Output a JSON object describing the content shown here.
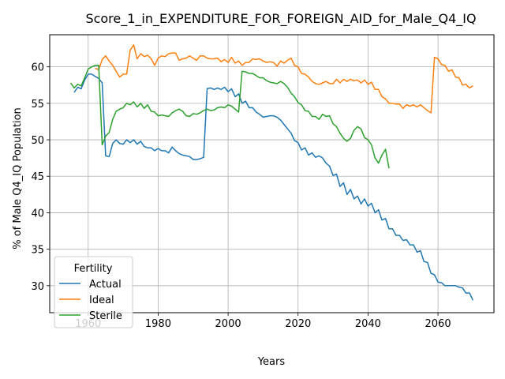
{
  "chart_data": {
    "type": "line",
    "title": "Score_1_in_EXPENDITURE_FOR_FOREIGN_AID_for_Male_Q4_IQ",
    "xlabel": "Years",
    "ylabel": "% of Male Q4_IQ Population",
    "xlim": [
      1949,
      2076
    ],
    "ylim": [
      26.3,
      64.4
    ],
    "xticks": [
      1960,
      1980,
      2000,
      2020,
      2040,
      2060
    ],
    "yticks": [
      30,
      35,
      40,
      45,
      50,
      55,
      60
    ],
    "grid": true,
    "legend": {
      "title": "Fertility",
      "placement": "lower-left"
    },
    "series": [
      {
        "name": "Actual",
        "color": "#1f77b4",
        "x": [
          1956,
          1957,
          1958,
          1959,
          1960,
          1961,
          1962,
          1963,
          1964,
          1965,
          1966,
          1967,
          1968,
          1969,
          1970,
          1971,
          1972,
          1973,
          1974,
          1975,
          1976,
          1977,
          1978,
          1979,
          1980,
          1981,
          1982,
          1983,
          1984,
          1985,
          1986,
          1987,
          1988,
          1989,
          1990,
          1991,
          1992,
          1993,
          1994,
          1995,
          1996,
          1997,
          1998,
          1999,
          2000,
          2001,
          2002,
          2003,
          2004,
          2005,
          2006,
          2007,
          2008,
          2009,
          2010,
          2011,
          2012,
          2013,
          2014,
          2015,
          2016,
          2017,
          2018,
          2019,
          2020,
          2021,
          2022,
          2023,
          2024,
          2025,
          2026,
          2027,
          2028,
          2029,
          2030,
          2031,
          2032,
          2033,
          2034,
          2035,
          2036,
          2037,
          2038,
          2039,
          2040,
          2041,
          2042,
          2043,
          2044,
          2045,
          2046,
          2047,
          2048,
          2049,
          2050,
          2051,
          2052,
          2053,
          2054,
          2055,
          2056,
          2057,
          2058,
          2059,
          2060,
          2061,
          2062,
          2063,
          2064,
          2065,
          2066,
          2067,
          2068,
          2069,
          2070
        ],
        "y": [
          56.5,
          57.2,
          57.0,
          58.2,
          59.0,
          59.0,
          58.7,
          58.4,
          57.8,
          47.8,
          47.7,
          49.5,
          50.0,
          49.5,
          49.4,
          50.0,
          49.6,
          50.0,
          49.4,
          49.8,
          49.1,
          48.9,
          48.9,
          48.5,
          48.8,
          48.5,
          48.5,
          48.2,
          49.0,
          48.5,
          48.1,
          47.9,
          47.8,
          47.7,
          47.3,
          47.3,
          47.4,
          47.6,
          57.0,
          57.1,
          56.9,
          57.1,
          56.9,
          57.2,
          56.6,
          57.0,
          55.9,
          56.3,
          55.0,
          55.3,
          54.4,
          54.4,
          53.8,
          53.5,
          53.1,
          53.2,
          53.3,
          53.3,
          53.1,
          52.7,
          52.1,
          51.5,
          50.9,
          49.9,
          49.6,
          48.6,
          48.9,
          47.9,
          48.2,
          47.6,
          47.8,
          47.5,
          46.8,
          46.4,
          45.1,
          45.3,
          43.6,
          44.1,
          42.5,
          43.2,
          41.9,
          42.3,
          41.2,
          41.9,
          40.9,
          41.3,
          40.0,
          40.4,
          39.0,
          39.2,
          37.8,
          37.8,
          36.9,
          36.9,
          36.2,
          36.3,
          35.6,
          35.6,
          34.6,
          34.8,
          33.3,
          33.2,
          31.7,
          31.5,
          30.5,
          30.4,
          30.0,
          30.0,
          30.0,
          30.0,
          29.8,
          29.7,
          29.0,
          29.0,
          28.0
        ]
      },
      {
        "name": "Ideal",
        "color": "#ff7f0e",
        "x": [
          1962,
          1963,
          1964,
          1965,
          1966,
          1967,
          1968,
          1969,
          1970,
          1971,
          1972,
          1973,
          1974,
          1975,
          1976,
          1977,
          1978,
          1979,
          1980,
          1981,
          1982,
          1983,
          1984,
          1985,
          1986,
          1987,
          1988,
          1989,
          1990,
          1991,
          1992,
          1993,
          1994,
          1995,
          1996,
          1997,
          1998,
          1999,
          2000,
          2001,
          2002,
          2003,
          2004,
          2005,
          2006,
          2007,
          2008,
          2009,
          2010,
          2011,
          2012,
          2013,
          2014,
          2015,
          2016,
          2017,
          2018,
          2019,
          2020,
          2021,
          2022,
          2023,
          2024,
          2025,
          2026,
          2027,
          2028,
          2029,
          2030,
          2031,
          2032,
          2033,
          2034,
          2035,
          2036,
          2037,
          2038,
          2039,
          2040,
          2041,
          2042,
          2043,
          2044,
          2045,
          2046,
          2047,
          2048,
          2049,
          2050,
          2051,
          2052,
          2053,
          2054,
          2055,
          2056,
          2057,
          2058,
          2059,
          2060,
          2061,
          2062,
          2063,
          2064,
          2065,
          2066,
          2067,
          2068,
          2069,
          2070
        ],
        "y": [
          59.8,
          59.6,
          61.0,
          61.5,
          60.8,
          60.2,
          59.4,
          58.6,
          59.0,
          59.0,
          62.3,
          63.0,
          61.1,
          61.8,
          61.4,
          61.6,
          61.1,
          60.2,
          61.2,
          61.5,
          61.4,
          61.8,
          61.9,
          61.9,
          60.9,
          61.1,
          61.2,
          61.5,
          61.2,
          60.9,
          61.5,
          61.5,
          61.2,
          61.1,
          61.1,
          61.2,
          60.7,
          61.0,
          60.6,
          61.3,
          60.5,
          60.8,
          60.2,
          60.6,
          60.6,
          61.1,
          61.0,
          61.1,
          60.8,
          60.6,
          60.7,
          60.6,
          60.1,
          60.8,
          60.5,
          60.9,
          61.2,
          60.2,
          60.0,
          59.1,
          59.0,
          58.6,
          58.0,
          57.7,
          57.6,
          57.8,
          58.0,
          57.7,
          57.7,
          58.3,
          57.8,
          58.3,
          58.0,
          58.3,
          58.1,
          58.2,
          57.8,
          58.2,
          57.6,
          57.9,
          56.9,
          56.9,
          55.9,
          55.6,
          55.0,
          55.0,
          54.9,
          54.9,
          54.3,
          54.8,
          54.6,
          54.8,
          54.5,
          54.8,
          54.4,
          54.0,
          53.7,
          61.3,
          61.1,
          60.3,
          60.2,
          59.4,
          59.6,
          58.6,
          58.5,
          57.5,
          57.6,
          57.1,
          57.4
        ]
      },
      {
        "name": "Sterile",
        "color": "#2ca02c",
        "x": [
          1955,
          1956,
          1957,
          1958,
          1959,
          1960,
          1961,
          1962,
          1963,
          1964,
          1965,
          1966,
          1967,
          1968,
          1969,
          1970,
          1971,
          1972,
          1973,
          1974,
          1975,
          1976,
          1977,
          1978,
          1979,
          1980,
          1981,
          1982,
          1983,
          1984,
          1985,
          1986,
          1987,
          1988,
          1989,
          1990,
          1991,
          1992,
          1993,
          1994,
          1995,
          1996,
          1997,
          1998,
          1999,
          2000,
          2001,
          2002,
          2003,
          2004,
          2005,
          2006,
          2007,
          2008,
          2009,
          2010,
          2011,
          2012,
          2013,
          2014,
          2015,
          2016,
          2017,
          2018,
          2019,
          2020,
          2021,
          2022,
          2023,
          2024,
          2025,
          2026,
          2027,
          2028,
          2029,
          2030,
          2031,
          2032,
          2033,
          2034,
          2035,
          2036,
          2037,
          2038,
          2039,
          2040,
          2041,
          2042,
          2043,
          2044,
          2045,
          2046
        ],
        "y": [
          57.8,
          57.1,
          57.6,
          57.4,
          58.5,
          59.7,
          60.0,
          60.2,
          60.2,
          49.3,
          50.5,
          51.0,
          52.8,
          53.9,
          54.2,
          54.4,
          55.0,
          54.8,
          55.2,
          54.5,
          55.0,
          54.3,
          54.8,
          53.9,
          53.8,
          53.3,
          53.4,
          53.3,
          53.2,
          53.7,
          54.0,
          54.2,
          53.9,
          53.3,
          53.2,
          53.6,
          53.5,
          53.7,
          54.0,
          54.2,
          54.0,
          54.1,
          54.4,
          54.5,
          54.4,
          54.8,
          54.6,
          54.2,
          53.8,
          59.4,
          59.3,
          59.1,
          59.1,
          58.8,
          58.5,
          58.5,
          58.1,
          57.9,
          57.8,
          57.7,
          58.0,
          57.7,
          57.2,
          56.4,
          55.9,
          55.1,
          54.8,
          54.0,
          53.9,
          53.2,
          53.2,
          52.8,
          53.5,
          53.2,
          53.3,
          52.2,
          51.8,
          50.9,
          50.2,
          49.8,
          50.2,
          51.3,
          51.8,
          51.5,
          50.3,
          50.0,
          49.3,
          47.5,
          46.8,
          47.9,
          48.7,
          46.1
        ]
      }
    ]
  }
}
